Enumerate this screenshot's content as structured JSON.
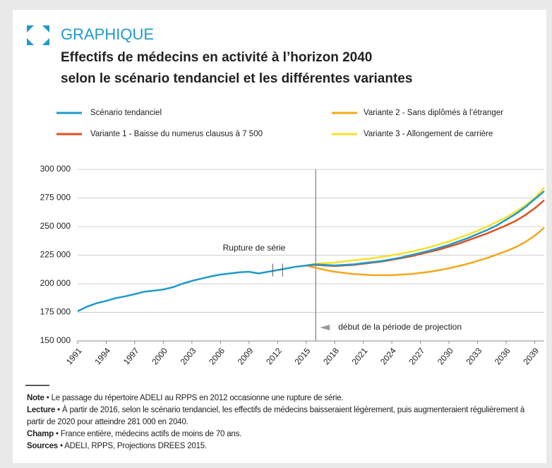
{
  "header": {
    "kicker": "GRAPHIQUE",
    "title_lines": [
      "Effectifs de médecins en activité à l’horizon 2040",
      "selon le scénario tendanciel et les différentes variantes"
    ]
  },
  "chart_data": {
    "type": "line",
    "x": [
      1991,
      1992,
      1993,
      1994,
      1995,
      1996,
      1997,
      1998,
      1999,
      2000,
      2001,
      2002,
      2003,
      2004,
      2005,
      2006,
      2007,
      2008,
      2009,
      2010,
      2011,
      2012,
      2013,
      2014,
      2015,
      2016,
      2017,
      2018,
      2019,
      2020,
      2021,
      2022,
      2023,
      2024,
      2025,
      2026,
      2027,
      2028,
      2029,
      2030,
      2031,
      2032,
      2033,
      2034,
      2035,
      2036,
      2037,
      2038,
      2039,
      2040
    ],
    "series": [
      {
        "name": "Scénario tendanciel",
        "color": "#1f9ac9",
        "values": [
          176000,
          180000,
          183000,
          185000,
          187500,
          189000,
          191000,
          193000,
          194000,
          195000,
          197000,
          200000,
          202500,
          204500,
          206500,
          208000,
          209000,
          210000,
          210500,
          209000,
          210500,
          212000,
          213500,
          215000,
          216000,
          217000,
          216500,
          216000,
          216500,
          217000,
          218000,
          219000,
          220000,
          221500,
          223000,
          225000,
          227000,
          229000,
          231500,
          234000,
          237000,
          240000,
          243500,
          247000,
          251000,
          256000,
          261000,
          267000,
          274000,
          281000
        ]
      },
      {
        "name": "Variante 1 - Baisse du numerus clausus à 7 500",
        "color": "#e0501e",
        "values": [
          null,
          null,
          null,
          null,
          null,
          null,
          null,
          null,
          null,
          null,
          null,
          null,
          null,
          null,
          null,
          null,
          null,
          null,
          null,
          null,
          null,
          null,
          null,
          null,
          216000,
          216500,
          216000,
          215500,
          216000,
          216500,
          217500,
          218500,
          219500,
          221000,
          222500,
          224000,
          226000,
          228000,
          230000,
          232500,
          235000,
          238000,
          241000,
          244000,
          247500,
          251000,
          255000,
          260000,
          266000,
          273000
        ]
      },
      {
        "name": "Variante 2 - Sans diplômés à l’étranger",
        "color": "#f2a81d",
        "values": [
          null,
          null,
          null,
          null,
          null,
          null,
          null,
          null,
          null,
          null,
          null,
          null,
          null,
          null,
          null,
          null,
          null,
          null,
          null,
          null,
          null,
          null,
          null,
          null,
          216000,
          214000,
          212000,
          210500,
          209500,
          208500,
          208000,
          207500,
          207500,
          207500,
          208000,
          208500,
          209500,
          210500,
          212000,
          213500,
          215500,
          217500,
          220000,
          222500,
          225500,
          228500,
          232000,
          236500,
          242000,
          249000
        ]
      },
      {
        "name": "Variante 3 - Allongement de carrière",
        "color": "#f5e12a",
        "values": [
          null,
          null,
          null,
          null,
          null,
          null,
          null,
          null,
          null,
          null,
          null,
          null,
          null,
          null,
          null,
          null,
          null,
          null,
          null,
          null,
          null,
          null,
          null,
          null,
          216000,
          217500,
          218000,
          218500,
          219500,
          220500,
          221500,
          222500,
          223500,
          225000,
          226500,
          228000,
          230000,
          232000,
          234500,
          237000,
          240000,
          243000,
          246500,
          250000,
          254000,
          258000,
          263000,
          268500,
          275000,
          284000
        ]
      }
    ],
    "xlim": [
      1991,
      2040
    ],
    "xticks": [
      1991,
      1994,
      1997,
      2000,
      2003,
      2006,
      2009,
      2012,
      2015,
      2018,
      2021,
      2024,
      2027,
      2030,
      2033,
      2036,
      2039
    ],
    "ylim": [
      150000,
      300000
    ],
    "yticks": [
      {
        "value": 150000,
        "label": "150 000"
      },
      {
        "value": 175000,
        "label": "175 000"
      },
      {
        "value": 200000,
        "label": "200 000"
      },
      {
        "value": 225000,
        "label": "225 000"
      },
      {
        "value": 250000,
        "label": "250 000"
      },
      {
        "value": 275000,
        "label": "275 000"
      },
      {
        "value": 300000,
        "label": "300 000"
      }
    ],
    "grid": true,
    "projection_start": 2016,
    "series_break": 2012,
    "annotations": {
      "break": "Rupture de série",
      "projection": "début de la période de projection"
    }
  },
  "notes": [
    {
      "label": "Note",
      "text": "Le passage du répertoire ADELI au RPPS en 2012 occasionne une rupture de série."
    },
    {
      "label": "Lecture",
      "text": "À partir de 2016, selon le scénario tendanciel, les effectifs de médecins baisseraient légèrement, puis augmenteraient régulièrement à partir de 2020 pour atteindre 281 000 en 2040."
    },
    {
      "label": "Champ",
      "text": "France entière, médecins actifs de moins de 70 ans."
    },
    {
      "label": "Sources",
      "text": "ADELI, RPPS, Projections DREES 2015."
    }
  ]
}
